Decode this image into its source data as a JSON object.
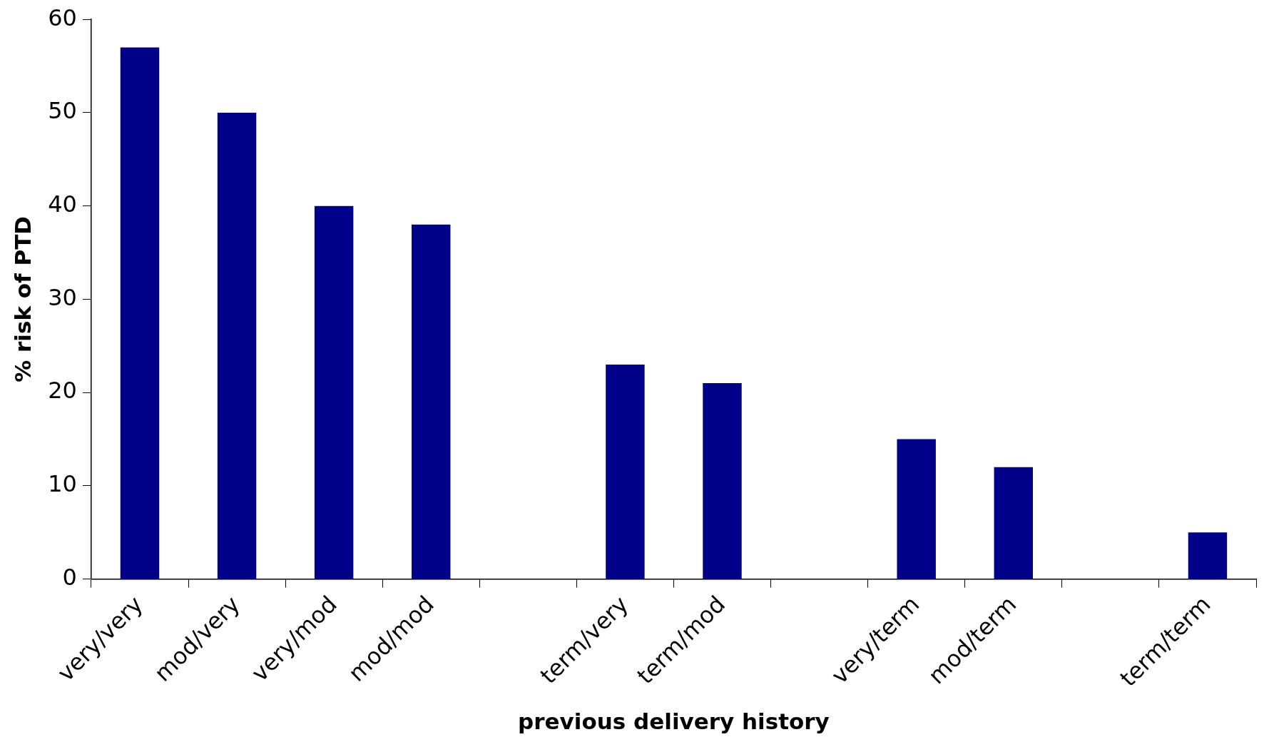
{
  "chart_data": {
    "type": "bar",
    "xlabel": "previous delivery history",
    "ylabel": "% risk of PTD",
    "categories": [
      "very/very",
      "mod/very",
      "very/mod",
      "mod/mod",
      null,
      "term/very",
      "term/mod",
      null,
      "very/term",
      "mod/term",
      null,
      "term/term"
    ],
    "values": [
      57,
      50,
      40,
      38,
      null,
      23,
      21,
      null,
      15,
      12,
      null,
      5
    ],
    "color": "#000088",
    "ylim": [
      0,
      60
    ],
    "yticks": [
      0,
      10,
      20,
      30,
      40,
      50,
      60
    ],
    "grid": false,
    "legend": false
  }
}
